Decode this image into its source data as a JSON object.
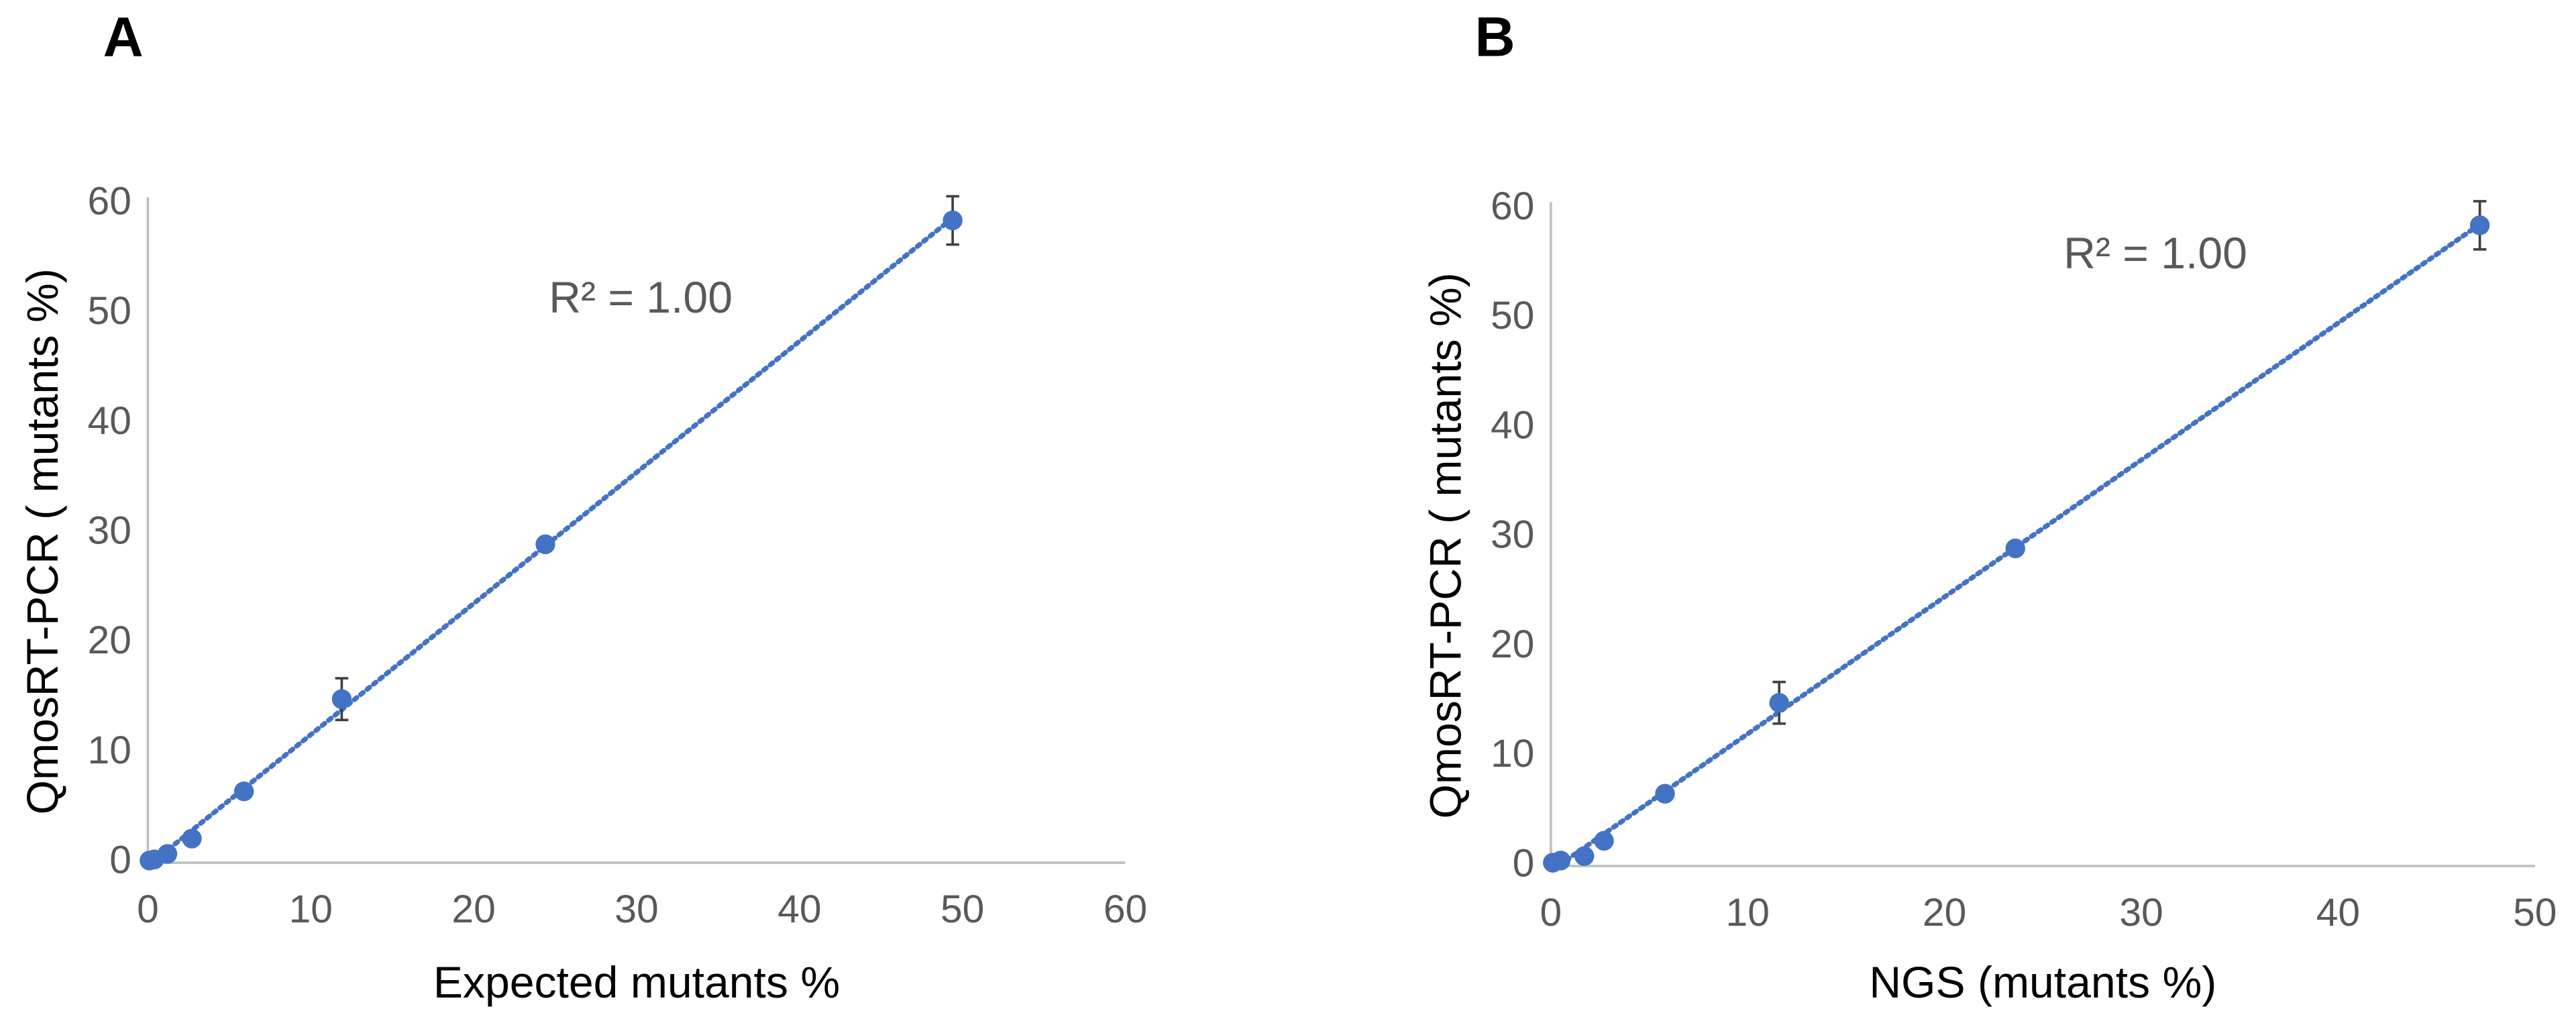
{
  "chart_data": [
    {
      "type": "scatter",
      "panel_label": "A",
      "annotation": "R² = 1.00",
      "x_label": "Expected mutants %",
      "y_label": "QmosRT-PCR ( mutants %)",
      "x": [
        0.1,
        0.4,
        1.2,
        2.7,
        5.9,
        11.9,
        24.4,
        49.4
      ],
      "values": [
        0.2,
        0.3,
        0.8,
        2.2,
        6.5,
        14.9,
        29.0,
        58.5
      ],
      "errors": [
        0.2,
        0.2,
        0.3,
        0.4,
        0.5,
        1.9,
        0.5,
        2.2
      ],
      "color": "#4472c4",
      "trendline": true,
      "xlim": [
        0,
        60
      ],
      "xticks": [
        0,
        10,
        20,
        30,
        40,
        50,
        60
      ],
      "ylim": [
        0,
        60
      ],
      "yticks": [
        0,
        10,
        20,
        30,
        40,
        50,
        60
      ]
    },
    {
      "type": "scatter",
      "panel_label": "B",
      "annotation": "R² = 1.00",
      "x_label": "NGS (mutants %)",
      "y_label": "QmosRT-PCR ( mutants %)",
      "x": [
        0.1,
        0.5,
        1.7,
        2.7,
        5.8,
        11.6,
        23.6,
        47.2
      ],
      "values": [
        0.3,
        0.5,
        0.9,
        2.3,
        6.6,
        14.9,
        29.0,
        58.5
      ],
      "errors": [
        0.2,
        0.2,
        0.3,
        0.4,
        0.5,
        1.9,
        0.5,
        2.2
      ],
      "color": "#4472c4",
      "trendline": true,
      "xlim": [
        0,
        50
      ],
      "xticks": [
        0,
        10,
        20,
        30,
        40,
        50
      ],
      "ylim": [
        0,
        60
      ],
      "yticks": [
        0,
        10,
        20,
        30,
        40,
        50,
        60
      ]
    }
  ]
}
